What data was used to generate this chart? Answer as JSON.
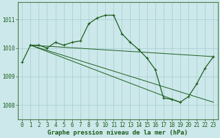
{
  "title": "Graphe pression niveau de la mer (hPa)",
  "background_color": "#cce8ea",
  "grid_color": "#aad0d4",
  "line_color": "#1a5c1a",
  "spine_color": "#4a7a4a",
  "xlim": [
    -0.5,
    23.5
  ],
  "ylim": [
    1007.5,
    1011.6
  ],
  "yticks": [
    1008,
    1009,
    1010,
    1011
  ],
  "xticks": [
    0,
    1,
    2,
    3,
    4,
    5,
    6,
    7,
    8,
    9,
    10,
    11,
    12,
    13,
    14,
    15,
    16,
    17,
    18,
    19,
    20,
    21,
    22,
    23
  ],
  "series_main": {
    "x": [
      0,
      1,
      2,
      3,
      4,
      5,
      6,
      7,
      8,
      9,
      10,
      11,
      12,
      13,
      14,
      15,
      16,
      17,
      18,
      19,
      20,
      21,
      22,
      23
    ],
    "y": [
      1009.5,
      1010.1,
      1010.1,
      1010.0,
      1010.2,
      1010.1,
      1010.2,
      1010.25,
      1010.85,
      1011.05,
      1011.15,
      1011.15,
      1010.5,
      1010.2,
      1009.95,
      1009.65,
      1009.25,
      1008.25,
      1008.2,
      1008.1,
      1008.3,
      1008.75,
      1009.3,
      1009.7
    ]
  },
  "series_lines": [
    {
      "x": [
        1,
        23
      ],
      "y": [
        1010.1,
        1009.7
      ]
    },
    {
      "x": [
        1,
        19
      ],
      "y": [
        1010.1,
        1008.1
      ]
    },
    {
      "x": [
        1,
        23
      ],
      "y": [
        1010.1,
        1008.1
      ]
    }
  ],
  "xlabel_fontsize": 6.5,
  "tick_fontsize": 5.5,
  "label_color": "#1a5c1a"
}
